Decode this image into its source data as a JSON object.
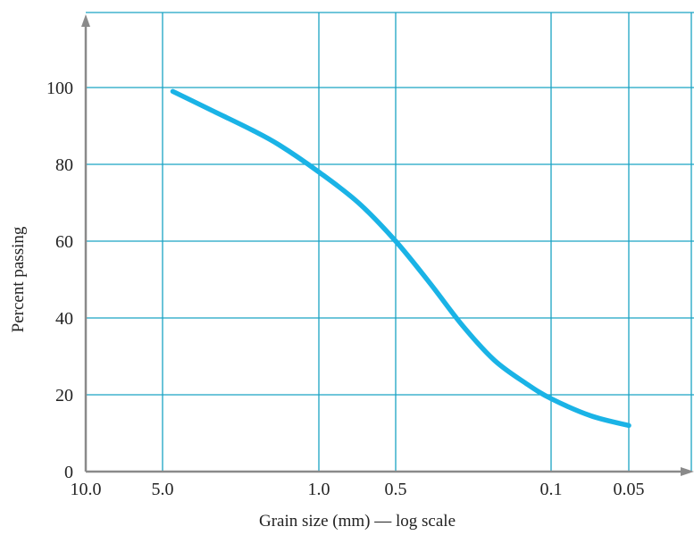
{
  "colors": {
    "grid": "#1aa3c4",
    "curve": "#1ab3e6",
    "axis": "#8a8a8a",
    "text": "#222222"
  },
  "chart_data": {
    "type": "line",
    "title": "",
    "xlabel": "Grain size (mm) — log scale",
    "ylabel": "Percent passing",
    "x_scale": "log",
    "x_reversed": true,
    "xlim": [
      10.0,
      0.03
    ],
    "ylim": [
      0,
      115
    ],
    "x_ticks": [
      {
        "value": 10.0,
        "label": "10.0"
      },
      {
        "value": 5.0,
        "label": "5.0"
      },
      {
        "value": 1.0,
        "label": "1.0"
      },
      {
        "value": 0.5,
        "label": "0.5"
      },
      {
        "value": 0.1,
        "label": "0.1"
      },
      {
        "value": 0.05,
        "label": "0.05"
      }
    ],
    "y_ticks": [
      {
        "value": 0,
        "label": "0"
      },
      {
        "value": 20,
        "label": "20"
      },
      {
        "value": 40,
        "label": "40"
      },
      {
        "value": 60,
        "label": "60"
      },
      {
        "value": 80,
        "label": "80"
      },
      {
        "value": 100,
        "label": "100"
      }
    ],
    "grid": true,
    "series": [
      {
        "points": [
          {
            "x": 4.5,
            "y": 99
          },
          {
            "x": 3.0,
            "y": 94
          },
          {
            "x": 2.0,
            "y": 89
          },
          {
            "x": 1.5,
            "y": 85
          },
          {
            "x": 1.0,
            "y": 78
          },
          {
            "x": 0.7,
            "y": 70
          },
          {
            "x": 0.5,
            "y": 60
          },
          {
            "x": 0.35,
            "y": 49
          },
          {
            "x": 0.25,
            "y": 38
          },
          {
            "x": 0.18,
            "y": 29
          },
          {
            "x": 0.13,
            "y": 23
          },
          {
            "x": 0.1,
            "y": 19
          },
          {
            "x": 0.07,
            "y": 14.5
          },
          {
            "x": 0.05,
            "y": 12
          }
        ]
      }
    ]
  }
}
